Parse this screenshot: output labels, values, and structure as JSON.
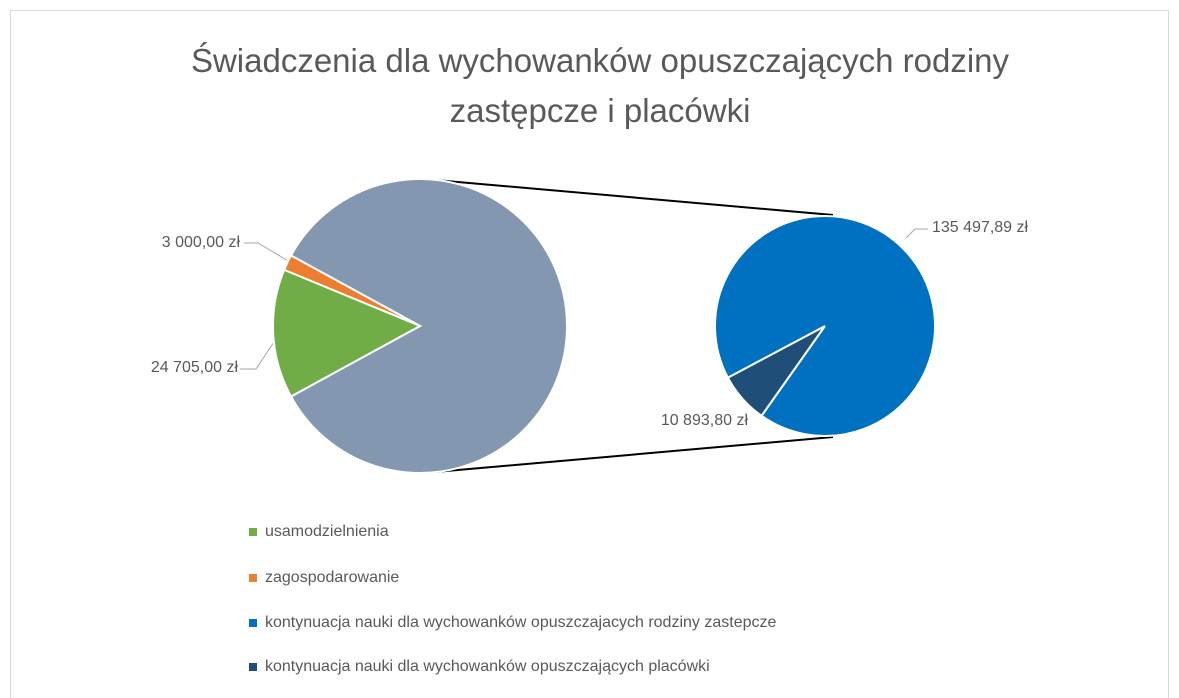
{
  "chart_data": {
    "type": "pie-of-pie",
    "title": "Świadczenia dla wychowanków opuszczających rodziny zastępcze i placówki",
    "categories": [
      "usamodzielnienia",
      "zagospodarowanie",
      "kontynuacja nauki dla wychowanków opuszczajacych rodziny zastepcze",
      "kontynuacja nauki dla wychowanków opuszczających placówki"
    ],
    "values": [
      24705,
      3000,
      135497.89,
      10893.8
    ],
    "value_labels": [
      "24 705,00 zł",
      "3 000,00 zł",
      "135 497,89 zł",
      "10 893,80 zł"
    ],
    "colors": [
      "#70ad47",
      "#ed7d31",
      "#0070c0",
      "#1f4e79"
    ],
    "other_color": "#8497b0",
    "legend": "bottom"
  }
}
